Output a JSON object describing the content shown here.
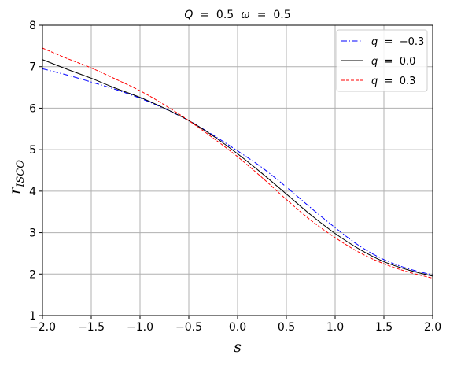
{
  "chart_data": {
    "type": "line",
    "title": "Q = 0.5  ω = 0.5",
    "xlabel": "s",
    "ylabel": "r_ISCO",
    "xlim": [
      -2.0,
      2.0
    ],
    "ylim": [
      1,
      8
    ],
    "xticks": [
      -2.0,
      -1.5,
      -1.0,
      -0.5,
      0.0,
      0.5,
      1.0,
      1.5,
      2.0
    ],
    "xtick_labels": [
      "−2.0",
      "−1.5",
      "−1.0",
      "−0.5",
      "0.0",
      "0.5",
      "1.0",
      "1.5",
      "2.0"
    ],
    "yticks": [
      1,
      2,
      3,
      4,
      5,
      6,
      7,
      8
    ],
    "ytick_labels": [
      "1",
      "2",
      "3",
      "4",
      "5",
      "6",
      "7",
      "8"
    ],
    "grid": true,
    "legend_position": "top-right",
    "x": [
      -2.0,
      -1.75,
      -1.5,
      -1.25,
      -1.0,
      -0.75,
      -0.5,
      -0.25,
      0.0,
      0.25,
      0.5,
      0.75,
      1.0,
      1.25,
      1.5,
      1.75,
      2.0
    ],
    "series": [
      {
        "name": "q = −0.3",
        "color": "#0000ff",
        "dash": "dashdot",
        "values": [
          6.95,
          6.8,
          6.63,
          6.45,
          6.24,
          5.99,
          5.7,
          5.35,
          4.97,
          4.57,
          4.1,
          3.6,
          3.12,
          2.68,
          2.35,
          2.13,
          1.98
        ]
      },
      {
        "name": "q = 0.0",
        "color": "#000000",
        "dash": "solid",
        "values": [
          7.17,
          6.94,
          6.72,
          6.48,
          6.26,
          6.0,
          5.7,
          5.33,
          4.9,
          4.43,
          3.93,
          3.43,
          2.98,
          2.6,
          2.3,
          2.1,
          1.95
        ]
      },
      {
        "name": "q = 0.3",
        "color": "#ff0000",
        "dash": "dashed",
        "values": [
          7.45,
          7.2,
          6.97,
          6.7,
          6.42,
          6.08,
          5.7,
          5.28,
          4.83,
          4.33,
          3.8,
          3.3,
          2.88,
          2.52,
          2.25,
          2.05,
          1.9
        ]
      }
    ]
  }
}
